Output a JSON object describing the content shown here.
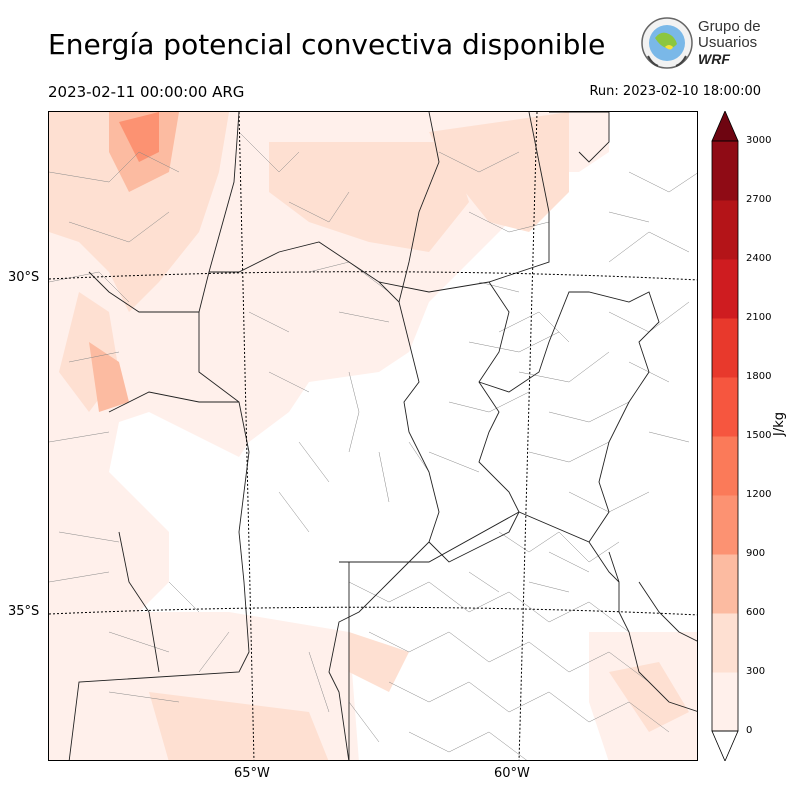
{
  "header": {
    "title": "Energía potencial convectiva disponible",
    "valid_time": "2023-02-11 00:00:00 ARG",
    "run_time": "Run: 2023-02-10 18:00:00"
  },
  "logo": {
    "line1": "Grupo de",
    "line2": "Usuarios",
    "line3": "WRF"
  },
  "map": {
    "lat_labels": [
      "30°S",
      "35°S"
    ],
    "lon_labels": [
      "65°W",
      "60°W"
    ]
  },
  "colorbar": {
    "unit": "J/kg",
    "ticks": [
      "0",
      "300",
      "600",
      "900",
      "1200",
      "1500",
      "1800",
      "2100",
      "2400",
      "2700",
      "3000"
    ],
    "colors": [
      "#fff0eb",
      "#fee0d2",
      "#fcbba1",
      "#fc9272",
      "#fb7a59",
      "#f6563f",
      "#e8392c",
      "#cf1c20",
      "#b41418",
      "#8f0b15",
      "#6e0511"
    ],
    "extend": "both"
  }
}
